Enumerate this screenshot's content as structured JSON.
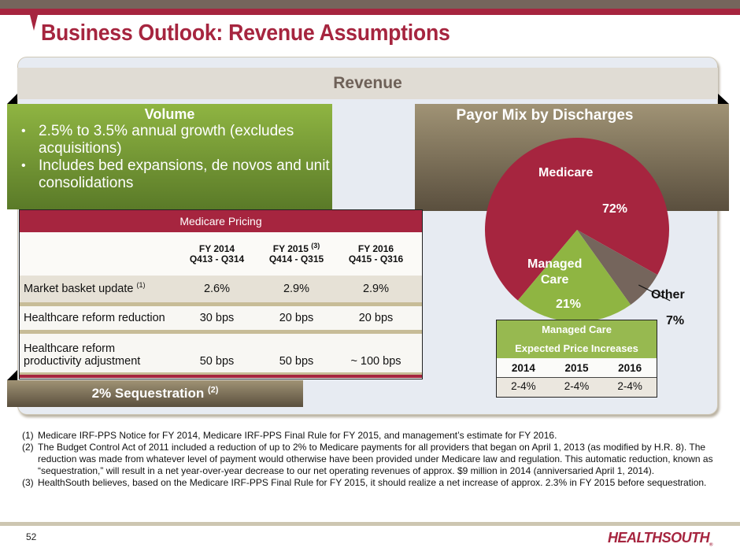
{
  "header": {
    "title": "Business Outlook: Revenue Assumptions",
    "colors": {
      "brand_red": "#a6253f",
      "brand_gray": "#75655c",
      "green": "#8fb542",
      "taupe": "#a09375"
    }
  },
  "revenue_band": {
    "label": "Revenue"
  },
  "volume": {
    "title": "Volume",
    "bullets": [
      "2.5% to 3.5% annual growth (excludes acquisitions)",
      "Includes bed expansions, de novos and unit consolidations"
    ]
  },
  "medicare_pricing": {
    "title": "Medicare Pricing",
    "columns": [
      {
        "fy": "FY 2014",
        "fy_note": "",
        "period": "Q413 - Q314"
      },
      {
        "fy": "FY 2015",
        "fy_note": "(3)",
        "period": "Q414 - Q315"
      },
      {
        "fy": "FY 2016",
        "fy_note": "",
        "period": "Q415 - Q316"
      }
    ],
    "rows": [
      {
        "label": "Market basket update",
        "note": "(1)",
        "values": [
          "2.6%",
          "2.9%",
          "2.9%"
        ]
      },
      {
        "label": "Healthcare reform reduction",
        "note": "",
        "values": [
          "30 bps",
          "20 bps",
          "20 bps"
        ]
      },
      {
        "label_line1": "Healthcare reform",
        "label_line2": "productivity adjustment",
        "values": [
          "50 bps",
          "50 bps",
          "~ 100 bps"
        ]
      }
    ]
  },
  "sequestration": {
    "label": "2% Sequestration",
    "note": "(2)"
  },
  "chart_data": {
    "type": "pie",
    "title": "Payor Mix by Discharges",
    "slices": [
      {
        "name": "Medicare",
        "value": 72,
        "label": "72%",
        "color": "#a6253f"
      },
      {
        "name": "Other",
        "value": 7,
        "label": "7%",
        "color": "#75655c"
      },
      {
        "name": "Managed Care",
        "value": 21,
        "label": "21%",
        "color": "#8fb542"
      }
    ]
  },
  "pie_labels": {
    "medicare": "Medicare",
    "medicare_pct": "72%",
    "managed_line1": "Managed",
    "managed_line2": "Care",
    "managed_pct": "21%",
    "other": "Other",
    "other_pct": "7%"
  },
  "managed_care": {
    "title_line1": "Managed Care",
    "title_line2": "Expected Price Increases",
    "years": [
      "2014",
      "2015",
      "2016"
    ],
    "values": [
      "2-4%",
      "2-4%",
      "2-4%"
    ]
  },
  "footnotes": [
    {
      "num": "(1)",
      "text": "Medicare IRF-PPS Notice for FY 2014,  Medicare IRF-PPS Final Rule for FY 2015, and management’s estimate for FY 2016."
    },
    {
      "num": "(2)",
      "text": "The Budget Control Act of 2011 included a reduction of up to 2% to Medicare payments for all providers that began on April 1, 2013 (as modified by H.R. 8). The reduction was made from whatever level of payment would otherwise have been provided under Medicare law and regulation. This automatic reduction, known as “sequestration,” will result in a net year-over-year decrease to our net operating revenues of approx. $9 million in 2014 (anniversaried April 1, 2014)."
    },
    {
      "num": "(3)",
      "text": "HealthSouth believes, based on the Medicare IRF-PPS Final  Rule for FY 2015, it should realize a net increase of approx. 2.3% in FY 2015 before sequestration."
    }
  ],
  "footer": {
    "page_number": "52",
    "logo": "HEALTHSOUTH",
    "logo_mark": "®"
  }
}
